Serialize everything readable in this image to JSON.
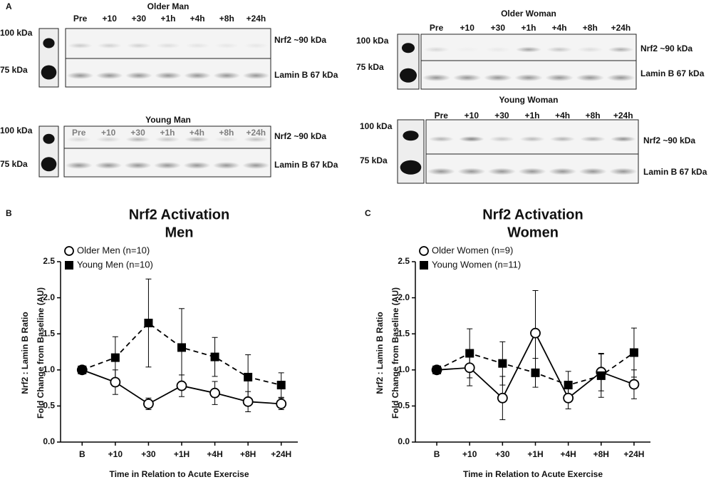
{
  "figure_a": {
    "label": "A",
    "blots": [
      {
        "title": "Older Man",
        "lanes": [
          "Pre",
          "+10",
          "+30",
          "+1h",
          "+4h",
          "+8h",
          "+24h"
        ],
        "markers": [
          "100 kDa",
          "75 kDa"
        ],
        "bands": [
          "Nrf2 ~90 kDa",
          "Lamin B 67 kDa"
        ]
      },
      {
        "title": "Young Man",
        "lanes": [
          "Pre",
          "+10",
          "+30",
          "+1h",
          "+4h",
          "+8h",
          "+24h"
        ],
        "markers": [
          "100 kDa",
          "75 kDa"
        ],
        "bands": [
          "Nrf2 ~90 kDa",
          "Lamin B 67 kDa"
        ]
      },
      {
        "title": "Older Woman",
        "lanes": [
          "Pre",
          "+10",
          "+30",
          "+1h",
          "+4h",
          "+8h",
          "+24h"
        ],
        "markers": [
          "100 kDa",
          "75 kDa"
        ],
        "bands": [
          "Nrf2 ~90 kDa",
          "Lamin B 67 kDa"
        ]
      },
      {
        "title": "Young Woman",
        "lanes": [
          "Pre",
          "+10",
          "+30",
          "+1h",
          "+4h",
          "+8h",
          "+24h"
        ],
        "markers": [
          "100 kDa",
          "75 kDa"
        ],
        "bands": [
          "Nrf2 ~90 kDa",
          "Lamin B 67 kDa"
        ]
      }
    ]
  },
  "chart_data": [
    {
      "type": "line",
      "panel_label": "B",
      "title": "Nrf2 Activation",
      "subtitle": "Men",
      "xlabel": "Time in Relation to Acute Exercise",
      "ylabel": [
        "Nrf2 : Lamin B Ratio",
        "Fold Change from Baseline (AU)"
      ],
      "categories": [
        "B",
        "+10",
        "+30",
        "+1H",
        "+4H",
        "+8H",
        "+24H"
      ],
      "ylim": [
        0,
        2.5
      ],
      "yticks": [
        {
          "value": 0,
          "label": "0.0"
        },
        0.5,
        {
          "value": 1,
          "label": "1.0"
        },
        1.5,
        {
          "value": 2,
          "label": "2.0"
        },
        2.5
      ],
      "series": [
        {
          "name": "Older Men (n=10)",
          "color": "#000000",
          "marker": "circle",
          "dashed": false,
          "values": [
            1.0,
            0.83,
            0.53,
            0.78,
            0.68,
            0.56,
            0.53
          ],
          "errors": [
            0.03,
            0.17,
            0.08,
            0.15,
            0.16,
            0.14,
            0.08
          ]
        },
        {
          "name": "Young Men (n=10)",
          "color": "#000000",
          "marker": "square",
          "dashed": true,
          "values": [
            1.0,
            1.17,
            1.65,
            1.31,
            1.18,
            0.9,
            0.79
          ],
          "errors": [
            0.03,
            0.29,
            0.61,
            0.54,
            0.27,
            0.31,
            0.17
          ]
        }
      ]
    },
    {
      "type": "line",
      "panel_label": "C",
      "title": "Nrf2 Activation",
      "subtitle": "Women",
      "xlabel": "Time in Relation to Acute Exercise",
      "ylabel": [
        "Nrf2 : Lamin B Ratio",
        "Fold Change from Baseline (AU)"
      ],
      "categories": [
        "B",
        "+10",
        "+30",
        "+1H",
        "+4H",
        "+8H",
        "+24H"
      ],
      "ylim": [
        0,
        2.5
      ],
      "yticks": [
        {
          "value": 0,
          "label": "0.0"
        },
        0.5,
        {
          "value": 1,
          "label": "1.0"
        },
        1.5,
        {
          "value": 2,
          "label": "2.0"
        },
        2.5
      ],
      "series": [
        {
          "name": "Older Women (n=9)",
          "color": "#000000",
          "marker": "circle",
          "dashed": false,
          "values": [
            1.0,
            1.03,
            0.61,
            1.51,
            0.61,
            0.97,
            0.8
          ],
          "errors": [
            0.03,
            0.25,
            0.3,
            0.59,
            0.15,
            0.26,
            0.2
          ]
        },
        {
          "name": "Young Women (n=11)",
          "color": "#000000",
          "marker": "square",
          "dashed": true,
          "values": [
            1.0,
            1.23,
            1.09,
            0.96,
            0.79,
            0.92,
            1.24
          ],
          "errors": [
            0.03,
            0.34,
            0.3,
            0.2,
            0.19,
            0.3,
            0.34
          ]
        }
      ]
    }
  ]
}
